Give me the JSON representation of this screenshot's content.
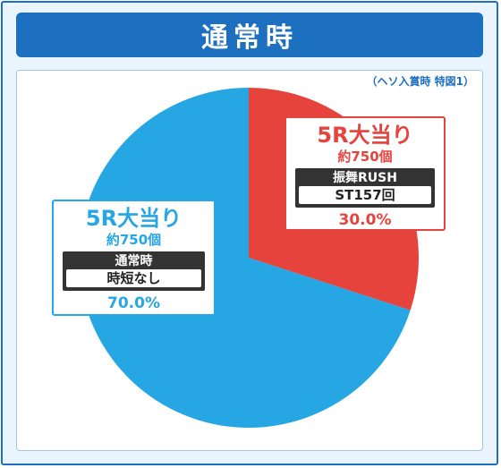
{
  "title": "通常時",
  "note": "（ヘソ入賞時 特図1）",
  "colors": {
    "frame": "#1d6fbf",
    "red": "#e6433d",
    "blue": "#26a6e3"
  },
  "chart_data": {
    "type": "pie",
    "slices": [
      {
        "value": 30.0,
        "color": "#e6433d",
        "head": "5R大当り",
        "sub": "約750個",
        "box_title": "振舞RUSH",
        "box_value": "ST157回",
        "pct": "30.0%"
      },
      {
        "value": 70.0,
        "color": "#26a6e3",
        "head": "5R大当り",
        "sub": "約750個",
        "box_title": "通常時",
        "box_value": "時短なし",
        "pct": "70.0%"
      }
    ]
  }
}
